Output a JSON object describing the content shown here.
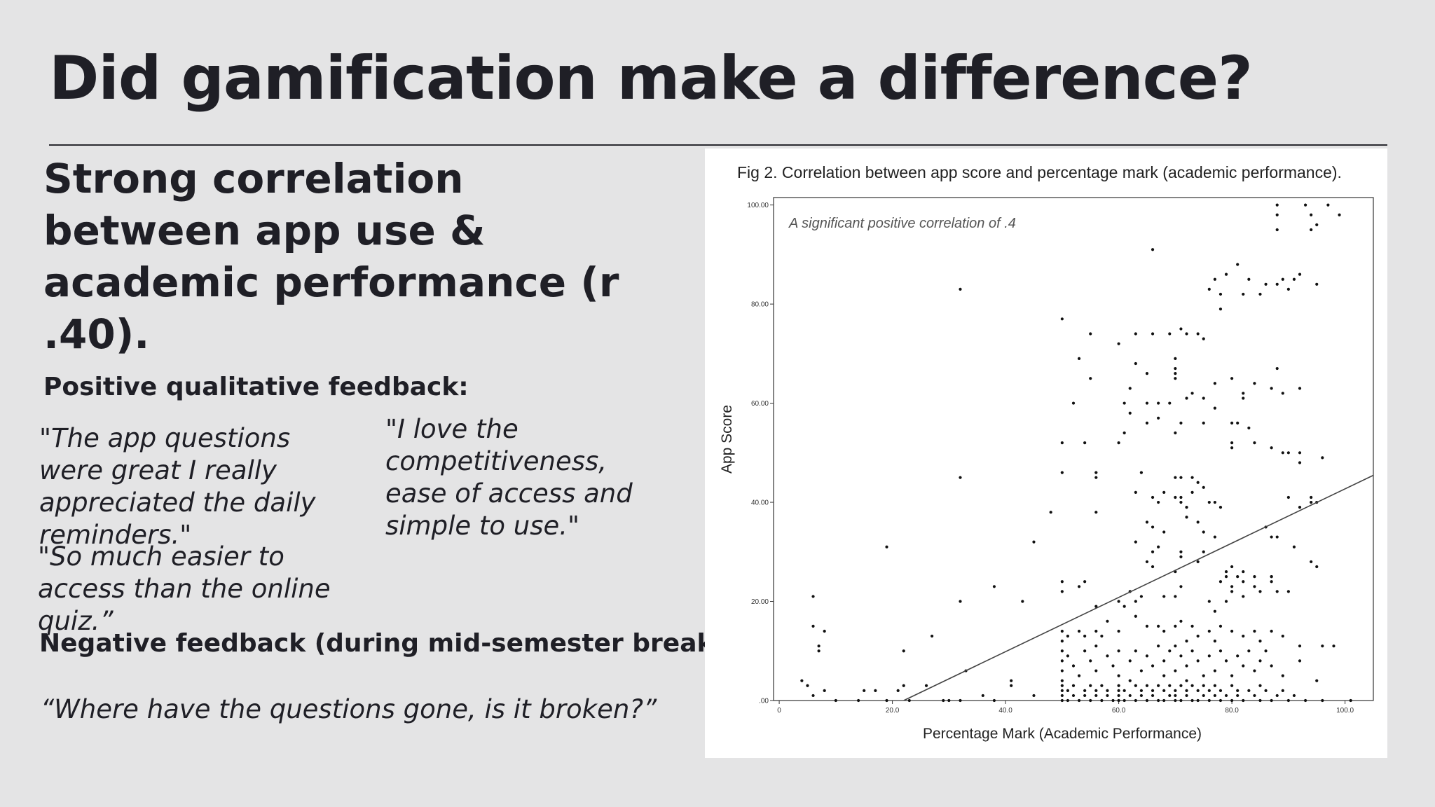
{
  "slide": {
    "title": "Did gamification make a difference?",
    "headline": "Strong correlation between app use & academic performance (r .40).",
    "positive_label": "Positive qualitative feedback:",
    "positive_quotes": [
      "\"The app questions were great I really appreciated the daily reminders.\"",
      "\"So much easier to access than the online quiz.”",
      "\"I love the competitiveness, ease of access and simple to use.\""
    ],
    "negative_label": "Negative feedback (during mid-semester break):",
    "negative_quote": "“Where have the questions gone, is it broken?”"
  },
  "chart_data": {
    "type": "scatter",
    "title": "Fig 2. Correlation between app score and percentage mark (academic performance).",
    "xlabel": "Percentage Mark (Academic Performance)",
    "ylabel": "App Score",
    "annotation": "A significant positive correlation of .4",
    "xlim": [
      -1,
      105
    ],
    "ylim": [
      0,
      101.5
    ],
    "x_ticks": [
      0,
      20,
      40,
      60,
      80,
      100
    ],
    "x_tick_labels": [
      "0",
      "20.0",
      "40.0",
      "60.0",
      "80.0",
      "100.0"
    ],
    "y_ticks": [
      0,
      20,
      40,
      60,
      80,
      100
    ],
    "y_tick_labels": [
      ".00",
      "20.00",
      "40.00",
      "60.00",
      "80.00",
      "100.00"
    ],
    "grid": false,
    "trendline": {
      "x": [
        22,
        106
      ],
      "y": [
        0,
        46
      ]
    },
    "points": [
      [
        32,
        83
      ],
      [
        66,
        91
      ],
      [
        88,
        100
      ],
      [
        88,
        98
      ],
      [
        88,
        95
      ],
      [
        93,
        100
      ],
      [
        94,
        98
      ],
      [
        94,
        95
      ],
      [
        95,
        96
      ],
      [
        97,
        100
      ],
      [
        99,
        98
      ],
      [
        81,
        88
      ],
      [
        79,
        86
      ],
      [
        86,
        84
      ],
      [
        83,
        85
      ],
      [
        88,
        84
      ],
      [
        89,
        85
      ],
      [
        91,
        85
      ],
      [
        92,
        86
      ],
      [
        90,
        83
      ],
      [
        95,
        84
      ],
      [
        82,
        82
      ],
      [
        77,
        85
      ],
      [
        78,
        82
      ],
      [
        76,
        83
      ],
      [
        85,
        82
      ],
      [
        78,
        79
      ],
      [
        50,
        77
      ],
      [
        55,
        74
      ],
      [
        60,
        72
      ],
      [
        63,
        74
      ],
      [
        66,
        74
      ],
      [
        69,
        74
      ],
      [
        71,
        75
      ],
      [
        72,
        74
      ],
      [
        74,
        74
      ],
      [
        75,
        73
      ],
      [
        53,
        69
      ],
      [
        70,
        69
      ],
      [
        70,
        67
      ],
      [
        70,
        66
      ],
      [
        70,
        65
      ],
      [
        63,
        68
      ],
      [
        88,
        67
      ],
      [
        65,
        66
      ],
      [
        55,
        65
      ],
      [
        62,
        63
      ],
      [
        77,
        64
      ],
      [
        80,
        65
      ],
      [
        87,
        63
      ],
      [
        89,
        62
      ],
      [
        92,
        63
      ],
      [
        84,
        64
      ],
      [
        73,
        62
      ],
      [
        75,
        61
      ],
      [
        82,
        61
      ],
      [
        82,
        62
      ],
      [
        52,
        60
      ],
      [
        61,
        60
      ],
      [
        65,
        60
      ],
      [
        67,
        60
      ],
      [
        69,
        60
      ],
      [
        72,
        61
      ],
      [
        62,
        58
      ],
      [
        77,
        59
      ],
      [
        65,
        56
      ],
      [
        67,
        57
      ],
      [
        71,
        56
      ],
      [
        75,
        56
      ],
      [
        80,
        56
      ],
      [
        81,
        56
      ],
      [
        83,
        55
      ],
      [
        61,
        54
      ],
      [
        70,
        54
      ],
      [
        50,
        52
      ],
      [
        54,
        52
      ],
      [
        60,
        52
      ],
      [
        80,
        51
      ],
      [
        80,
        52
      ],
      [
        84,
        52
      ],
      [
        87,
        51
      ],
      [
        90,
        50
      ],
      [
        89,
        50
      ],
      [
        92,
        50
      ],
      [
        96,
        49
      ],
      [
        50,
        46
      ],
      [
        56,
        45
      ],
      [
        56,
        46
      ],
      [
        64,
        46
      ],
      [
        70,
        45
      ],
      [
        71,
        45
      ],
      [
        73,
        45
      ],
      [
        74,
        44
      ],
      [
        92,
        48
      ],
      [
        32,
        45
      ],
      [
        63,
        42
      ],
      [
        66,
        41
      ],
      [
        68,
        42
      ],
      [
        70,
        41
      ],
      [
        71,
        41
      ],
      [
        73,
        42
      ],
      [
        75,
        43
      ],
      [
        67,
        40
      ],
      [
        71,
        40
      ],
      [
        72,
        39
      ],
      [
        76,
        40
      ],
      [
        77,
        40
      ],
      [
        78,
        39
      ],
      [
        90,
        41
      ],
      [
        92,
        39
      ],
      [
        94,
        40
      ],
      [
        94,
        41
      ],
      [
        95,
        40
      ],
      [
        48,
        38
      ],
      [
        56,
        38
      ],
      [
        65,
        36
      ],
      [
        66,
        35
      ],
      [
        68,
        34
      ],
      [
        72,
        37
      ],
      [
        74,
        36
      ],
      [
        75,
        34
      ],
      [
        77,
        33
      ],
      [
        86,
        35
      ],
      [
        87,
        33
      ],
      [
        88,
        33
      ],
      [
        91,
        31
      ],
      [
        19,
        31
      ],
      [
        45,
        32
      ],
      [
        63,
        32
      ],
      [
        66,
        30
      ],
      [
        67,
        31
      ],
      [
        71,
        30
      ],
      [
        71,
        29
      ],
      [
        74,
        28
      ],
      [
        75,
        30
      ],
      [
        79,
        26
      ],
      [
        80,
        27
      ],
      [
        81,
        25
      ],
      [
        82,
        26
      ],
      [
        65,
        28
      ],
      [
        66,
        27
      ],
      [
        70,
        26
      ],
      [
        79,
        25
      ],
      [
        78,
        24
      ],
      [
        82,
        24
      ],
      [
        84,
        25
      ],
      [
        87,
        25
      ],
      [
        87,
        24
      ],
      [
        94,
        28
      ],
      [
        95,
        27
      ],
      [
        6,
        21
      ],
      [
        32,
        20
      ],
      [
        38,
        23
      ],
      [
        43,
        20
      ],
      [
        50,
        24
      ],
      [
        50,
        22
      ],
      [
        53,
        23
      ],
      [
        54,
        24
      ],
      [
        56,
        19
      ],
      [
        60,
        20
      ],
      [
        61,
        19
      ],
      [
        63,
        20
      ],
      [
        64,
        21
      ],
      [
        62,
        22
      ],
      [
        68,
        21
      ],
      [
        70,
        21
      ],
      [
        71,
        23
      ],
      [
        76,
        20
      ],
      [
        77,
        18
      ],
      [
        79,
        20
      ],
      [
        80,
        23
      ],
      [
        80,
        22
      ],
      [
        82,
        21
      ],
      [
        84,
        23
      ],
      [
        85,
        22
      ],
      [
        87,
        25
      ],
      [
        88,
        22
      ],
      [
        90,
        22
      ],
      [
        6,
        15
      ],
      [
        8,
        14
      ],
      [
        7,
        11
      ],
      [
        7,
        10
      ],
      [
        22,
        10
      ],
      [
        27,
        13
      ],
      [
        50,
        14
      ],
      [
        50,
        12
      ],
      [
        51,
        13
      ],
      [
        53,
        14
      ],
      [
        54,
        13
      ],
      [
        56,
        14
      ],
      [
        57,
        13
      ],
      [
        58,
        16
      ],
      [
        60,
        14
      ],
      [
        63,
        17
      ],
      [
        65,
        15
      ],
      [
        67,
        15
      ],
      [
        68,
        14
      ],
      [
        70,
        15
      ],
      [
        71,
        16
      ],
      [
        72,
        12
      ],
      [
        73,
        15
      ],
      [
        74,
        13
      ],
      [
        76,
        14
      ],
      [
        77,
        12
      ],
      [
        78,
        15
      ],
      [
        80,
        14
      ],
      [
        82,
        13
      ],
      [
        84,
        14
      ],
      [
        85,
        12
      ],
      [
        87,
        14
      ],
      [
        89,
        13
      ],
      [
        92,
        11
      ],
      [
        96,
        11
      ],
      [
        98,
        11
      ],
      [
        50,
        10
      ],
      [
        50,
        8
      ],
      [
        50,
        6
      ],
      [
        50,
        4
      ],
      [
        51,
        9
      ],
      [
        52,
        7
      ],
      [
        53,
        5
      ],
      [
        54,
        10
      ],
      [
        55,
        8
      ],
      [
        56,
        11
      ],
      [
        56,
        6
      ],
      [
        58,
        9
      ],
      [
        59,
        7
      ],
      [
        60,
        10
      ],
      [
        60,
        5
      ],
      [
        62,
        8
      ],
      [
        62,
        4
      ],
      [
        63,
        10
      ],
      [
        64,
        6
      ],
      [
        65,
        9
      ],
      [
        66,
        7
      ],
      [
        67,
        11
      ],
      [
        68,
        5
      ],
      [
        68,
        8
      ],
      [
        69,
        10
      ],
      [
        70,
        6
      ],
      [
        70,
        11
      ],
      [
        71,
        9
      ],
      [
        72,
        7
      ],
      [
        72,
        4
      ],
      [
        73,
        10
      ],
      [
        74,
        8
      ],
      [
        75,
        5
      ],
      [
        76,
        9
      ],
      [
        77,
        6
      ],
      [
        78,
        10
      ],
      [
        79,
        8
      ],
      [
        80,
        5
      ],
      [
        81,
        9
      ],
      [
        82,
        7
      ],
      [
        83,
        10
      ],
      [
        84,
        6
      ],
      [
        85,
        8
      ],
      [
        86,
        10
      ],
      [
        87,
        7
      ],
      [
        89,
        5
      ],
      [
        92,
        8
      ],
      [
        95,
        4
      ],
      [
        4,
        4
      ],
      [
        5,
        3
      ],
      [
        6,
        1
      ],
      [
        8,
        2
      ],
      [
        10,
        0
      ],
      [
        14,
        0
      ],
      [
        15,
        2
      ],
      [
        17,
        2
      ],
      [
        19,
        0
      ],
      [
        21,
        2
      ],
      [
        22,
        3
      ],
      [
        23,
        0
      ],
      [
        26,
        3
      ],
      [
        29,
        0
      ],
      [
        30,
        0
      ],
      [
        32,
        0
      ],
      [
        33,
        6
      ],
      [
        36,
        1
      ],
      [
        38,
        0
      ],
      [
        41,
        4
      ],
      [
        41,
        3
      ],
      [
        45,
        1
      ],
      [
        50,
        3
      ],
      [
        50,
        2
      ],
      [
        50,
        1
      ],
      [
        50,
        0
      ],
      [
        51,
        2
      ],
      [
        51,
        0
      ],
      [
        52,
        3
      ],
      [
        52,
        1
      ],
      [
        53,
        0
      ],
      [
        54,
        2
      ],
      [
        54,
        1
      ],
      [
        55,
        3
      ],
      [
        55,
        0
      ],
      [
        56,
        2
      ],
      [
        56,
        1
      ],
      [
        57,
        3
      ],
      [
        57,
        0
      ],
      [
        58,
        2
      ],
      [
        58,
        1
      ],
      [
        59,
        0
      ],
      [
        60,
        3
      ],
      [
        60,
        2
      ],
      [
        60,
        1
      ],
      [
        60,
        0
      ],
      [
        61,
        2
      ],
      [
        61,
        0
      ],
      [
        62,
        1
      ],
      [
        63,
        3
      ],
      [
        63,
        0
      ],
      [
        64,
        2
      ],
      [
        64,
        1
      ],
      [
        65,
        0
      ],
      [
        65,
        3
      ],
      [
        66,
        2
      ],
      [
        66,
        1
      ],
      [
        67,
        0
      ],
      [
        67,
        3
      ],
      [
        68,
        2
      ],
      [
        68,
        0
      ],
      [
        69,
        1
      ],
      [
        69,
        3
      ],
      [
        70,
        2
      ],
      [
        70,
        0
      ],
      [
        70,
        1
      ],
      [
        71,
        3
      ],
      [
        71,
        0
      ],
      [
        72,
        2
      ],
      [
        72,
        1
      ],
      [
        73,
        0
      ],
      [
        73,
        3
      ],
      [
        74,
        2
      ],
      [
        74,
        0
      ],
      [
        75,
        1
      ],
      [
        75,
        3
      ],
      [
        76,
        2
      ],
      [
        76,
        0
      ],
      [
        77,
        1
      ],
      [
        77,
        3
      ],
      [
        78,
        2
      ],
      [
        78,
        0
      ],
      [
        79,
        1
      ],
      [
        80,
        3
      ],
      [
        80,
        0
      ],
      [
        81,
        2
      ],
      [
        81,
        1
      ],
      [
        82,
        0
      ],
      [
        83,
        2
      ],
      [
        84,
        1
      ],
      [
        85,
        0
      ],
      [
        85,
        3
      ],
      [
        86,
        2
      ],
      [
        87,
        0
      ],
      [
        88,
        1
      ],
      [
        89,
        2
      ],
      [
        90,
        0
      ],
      [
        91,
        1
      ],
      [
        93,
        0
      ],
      [
        96,
        0
      ],
      [
        101,
        0
      ]
    ]
  }
}
